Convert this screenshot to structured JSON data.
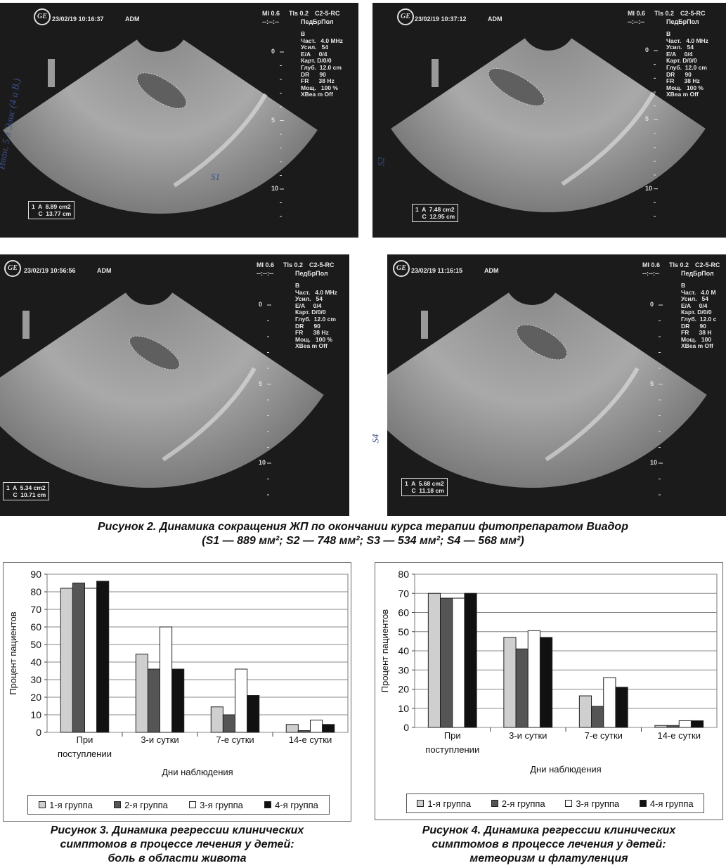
{
  "ultrasound": [
    {
      "timestamp": "23/02/19 10:16:37",
      "operator": "ADM",
      "mi": "MI 0.6",
      "tis": "TIs 0.2",
      "probe": "C2-5-RC",
      "preset": "ПедБрПол",
      "dashes": "--:--:--",
      "params": "B\nЧаст.   4.0 MHz\nУсил.   54\nE/A     0/4\nКарт. D/0/0\nГлуб.  12.0 cm\nDR      90\nFR      38 Hz\nМощ.   100 %\nXBea m Off",
      "measure": "1  A  8.89 cm2\n    C  13.77 cm",
      "handnote": "S1",
      "margin_note": "Иван. 5 л Элис (4 и В.)"
    },
    {
      "timestamp": "23/02/19 10:37:12",
      "operator": "ADM",
      "mi": "MI 0.6",
      "tis": "TIs 0.2",
      "probe": "C2-5-RC",
      "preset": "ПедБрПол",
      "dashes": "--:--:--",
      "params": "B\nЧаст.   4.0 MHz\nУсил.   54\nE/A     0/4\nКарт. D/0/0\nГлуб.  12.0 cm\nDR      90\nFR      38 Hz\nМощ.   100 %\nXBea m Off",
      "measure": "1  A  7.48 cm2\n    C  12.95 cm",
      "handnote": "S2"
    },
    {
      "timestamp": "23/02/19 10:56:56",
      "operator": "ADM",
      "mi": "MI 0.6",
      "tis": "TIs 0.2",
      "probe": "C2-5-RC",
      "preset": "ПедБрПол",
      "dashes": "--:--:--",
      "params": "B\nЧаст.   4.0 MHz\nУсил.   54\nE/A     0/4\nКарт. D/0/0\nГлуб.  12.0 cm\nDR      90\nFR      38 Hz\nМощ.   100 %\nXBea m Off",
      "measure": "1  A  5.34 cm2\n    C  10.71 cm",
      "handnote": ""
    },
    {
      "timestamp": "23/02/19 11:16:15",
      "operator": "ADM",
      "mi": "MI 0.6",
      "tis": "TIs 0.2",
      "probe": "C2-5-RC",
      "preset": "ПедБрПол",
      "dashes": "--:--:--",
      "params": "B\nЧаст.   4.0 M\nУсил.   54\nE/A     0/4\nКарт. D/0/0\nГлуб.  12.0 c\nDR      90\nFR      38 H\nМощ.   100 \nXBea m Off",
      "measure": "1  A  5.68 cm2\n    C  11.18 cm",
      "handnote": "S4"
    }
  ],
  "scale_labels": [
    "0",
    "5",
    "10"
  ],
  "figure2_caption": {
    "line1": "Рисунок 2. Динамика сокращения ЖП по окончании курса терапии фитопрепаратом Виадор",
    "line2": "(S1 — 889 мм²; S2 — 748 мм²; S3 — 534 мм²; S4 — 568 мм²)"
  },
  "figure3_caption": {
    "line1": "Рисунок 3. Динамика регрессии клинических",
    "line2": "симптомов в процессе лечения у детей:",
    "line3": "боль в области живота"
  },
  "figure4_caption": {
    "line1": "Рисунок 4. Динамика регрессии клинических",
    "line2": "симптомов в процессе лечения у детей:",
    "line3": "метеоризм и флатуленция"
  },
  "colors": {
    "group1": "#cfcfcf",
    "group2": "#555555",
    "group3": "#ffffff",
    "group4": "#111111"
  },
  "chart_data": [
    {
      "type": "bar",
      "title": "",
      "ylabel": "Процент пациентов",
      "xlabel": "Дни наблюдения",
      "ylim": [
        0,
        90
      ],
      "yticks": [
        0,
        10,
        20,
        30,
        40,
        50,
        60,
        70,
        80,
        90
      ],
      "categories": [
        "При поступлении",
        "3-и сутки",
        "7-е сутки",
        "14-е сутки"
      ],
      "category_lines": [
        [
          "При",
          "поступлении"
        ],
        [
          "3-и сутки"
        ],
        [
          "7-е сутки"
        ],
        [
          "14-е сутки"
        ]
      ],
      "grid": true,
      "legend_position": "bottom",
      "series": [
        {
          "name": "1-я группа",
          "values": [
            82,
            44.5,
            14.5,
            4.5
          ]
        },
        {
          "name": "2-я группа",
          "values": [
            85,
            36,
            10,
            1
          ]
        },
        {
          "name": "3-я группа",
          "values": [
            82,
            60,
            36,
            7
          ]
        },
        {
          "name": "4-я группа",
          "values": [
            86,
            36,
            21,
            4.5
          ]
        }
      ]
    },
    {
      "type": "bar",
      "title": "",
      "ylabel": "Процент пациентов",
      "xlabel": "Дни наблюдения",
      "ylim": [
        0,
        80
      ],
      "yticks": [
        0,
        10,
        20,
        30,
        40,
        50,
        60,
        70,
        80
      ],
      "categories": [
        "При поступлении",
        "3-и сутки",
        "7-е сутки",
        "14-е сутки"
      ],
      "category_lines": [
        [
          "При",
          "поступлении"
        ],
        [
          "3-и сутки"
        ],
        [
          "7-е сутки"
        ],
        [
          "14-е сутки"
        ]
      ],
      "grid": true,
      "legend_position": "bottom",
      "series": [
        {
          "name": "1-я группа",
          "values": [
            70,
            47,
            16.5,
            1
          ]
        },
        {
          "name": "2-я группа",
          "values": [
            67.5,
            41,
            11,
            1
          ]
        },
        {
          "name": "3-я группа",
          "values": [
            67.5,
            50.5,
            26,
            3.5
          ]
        },
        {
          "name": "4-я группа",
          "values": [
            70,
            47,
            21,
            3.5
          ]
        }
      ]
    }
  ]
}
